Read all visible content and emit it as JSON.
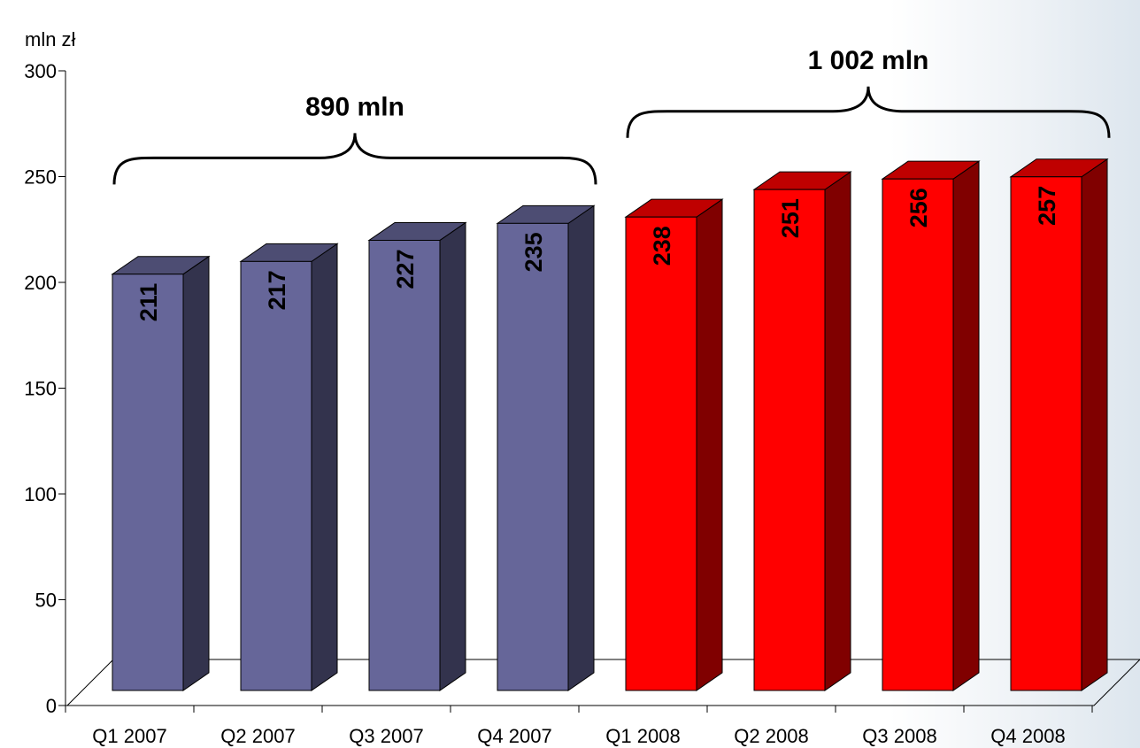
{
  "chart_data": {
    "type": "bar",
    "ylabel": "mln zł",
    "ylim": [
      0,
      300
    ],
    "yticks": [
      0,
      50,
      100,
      150,
      200,
      250,
      300
    ],
    "categories": [
      "Q1 2007",
      "Q2 2007",
      "Q3 2007",
      "Q4 2007",
      "Q1 2008",
      "Q2 2008",
      "Q3 2008",
      "Q4 2008"
    ],
    "values": [
      211,
      217,
      227,
      235,
      238,
      251,
      256,
      257
    ],
    "bar_colors": [
      "#666699",
      "#666699",
      "#666699",
      "#666699",
      "#ff0000",
      "#ff0000",
      "#ff0000",
      "#ff0000"
    ],
    "annotations": [
      {
        "text": "890 mln",
        "from": 0,
        "to": 3
      },
      {
        "text": "1 002 mln",
        "from": 4,
        "to": 7
      }
    ],
    "grid": false,
    "style": "3d-columns"
  }
}
